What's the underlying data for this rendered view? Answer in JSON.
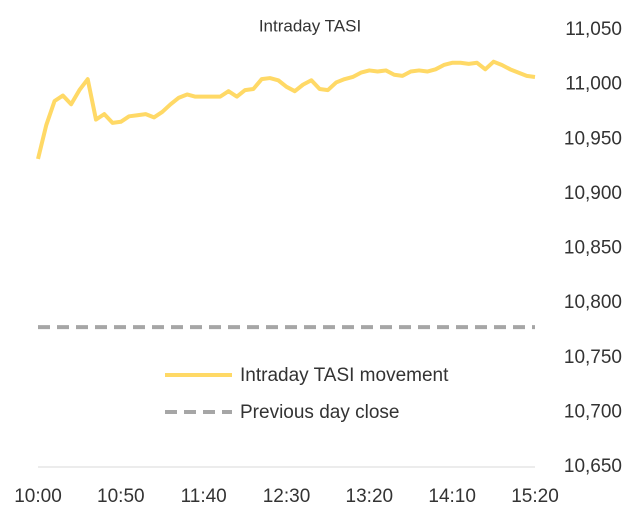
{
  "chart_data": {
    "type": "line",
    "title": "Intraday TASI",
    "categories": [
      "10:00",
      null,
      null,
      null,
      null,
      null,
      null,
      null,
      null,
      null,
      "10:50",
      null,
      null,
      null,
      null,
      null,
      null,
      null,
      null,
      null,
      "11:40",
      null,
      null,
      null,
      null,
      null,
      null,
      null,
      null,
      null,
      "12:30",
      null,
      null,
      null,
      null,
      null,
      null,
      null,
      null,
      null,
      "13:20",
      null,
      null,
      null,
      null,
      null,
      null,
      null,
      null,
      null,
      "14:10",
      null,
      null,
      null,
      null,
      null,
      null,
      null,
      null,
      null,
      "15:20"
    ],
    "series": [
      {
        "name": "Intraday TASI movement",
        "color": "#FFD966",
        "values": [
          10932,
          10963,
          10985,
          10990,
          10982,
          10995,
          11005,
          10968,
          10973,
          10965,
          10966,
          10971,
          10972,
          10973,
          10970,
          10975,
          10982,
          10988,
          10991,
          10989,
          10989,
          10989,
          10989,
          10994,
          10989,
          10995,
          10996,
          11005,
          11006,
          11004,
          10998,
          10994,
          11000,
          11004,
          10996,
          10995,
          11002,
          11005,
          11007,
          11011,
          11013,
          11012,
          11013,
          11009,
          11008,
          11012,
          11013,
          11012,
          11014,
          11018,
          11020,
          11020,
          11019,
          11020,
          11014,
          11021,
          11018,
          11014,
          11011,
          11008,
          11007
        ]
      }
    ],
    "previous_close": {
      "name": "Previous day close",
      "color": "#A6A6A6",
      "value": 10778
    },
    "ylim": [
      10650,
      11050
    ],
    "yticks": [
      {
        "value": 10650,
        "label": "10,650"
      },
      {
        "value": 10700,
        "label": "10,700"
      },
      {
        "value": 10750,
        "label": "10,750"
      },
      {
        "value": 10800,
        "label": "10,800"
      },
      {
        "value": 10850,
        "label": "10,850"
      },
      {
        "value": 10900,
        "label": "10,900"
      },
      {
        "value": 10950,
        "label": "10,950"
      },
      {
        "value": 11000,
        "label": "11,000"
      },
      {
        "value": 11050,
        "label": "11,050"
      }
    ]
  }
}
